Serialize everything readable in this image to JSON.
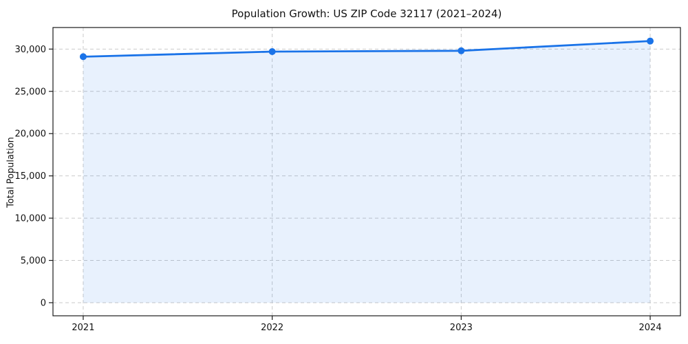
{
  "figure": {
    "background": "#ffffff",
    "text_color": "#111111",
    "spine_color": "#1a1a1a",
    "grid_color": "#c9c9c9"
  },
  "chart_data": {
    "type": "line",
    "title": "Population Growth: US ZIP Code 32117 (2021–2024)",
    "xlabel": "",
    "ylabel": "Total Population",
    "x": [
      2021,
      2022,
      2023,
      2024
    ],
    "series": [
      {
        "name": "Total Population",
        "values": [
          29100,
          29700,
          29800,
          30950
        ]
      }
    ],
    "xlim": [
      2020.84,
      2024.16
    ],
    "ylim": [
      -1550,
      32550
    ],
    "xticks": [
      2021,
      2022,
      2023,
      2024
    ],
    "xtick_labels": [
      "2021",
      "2022",
      "2023",
      "2024"
    ],
    "yticks": [
      0,
      5000,
      10000,
      15000,
      20000,
      25000,
      30000
    ],
    "ytick_labels": [
      "0",
      "5,000",
      "10,000",
      "15,000",
      "20,000",
      "25,000",
      "30,000"
    ],
    "grid": true,
    "grid_style": "dashed",
    "legend": false,
    "line_color": "#1a73e8",
    "fill_color": "rgba(26,115,232,0.10)",
    "area_fill_baseline": 0,
    "marker": "circle",
    "marker_radius": 5,
    "line_width": 2.8
  }
}
